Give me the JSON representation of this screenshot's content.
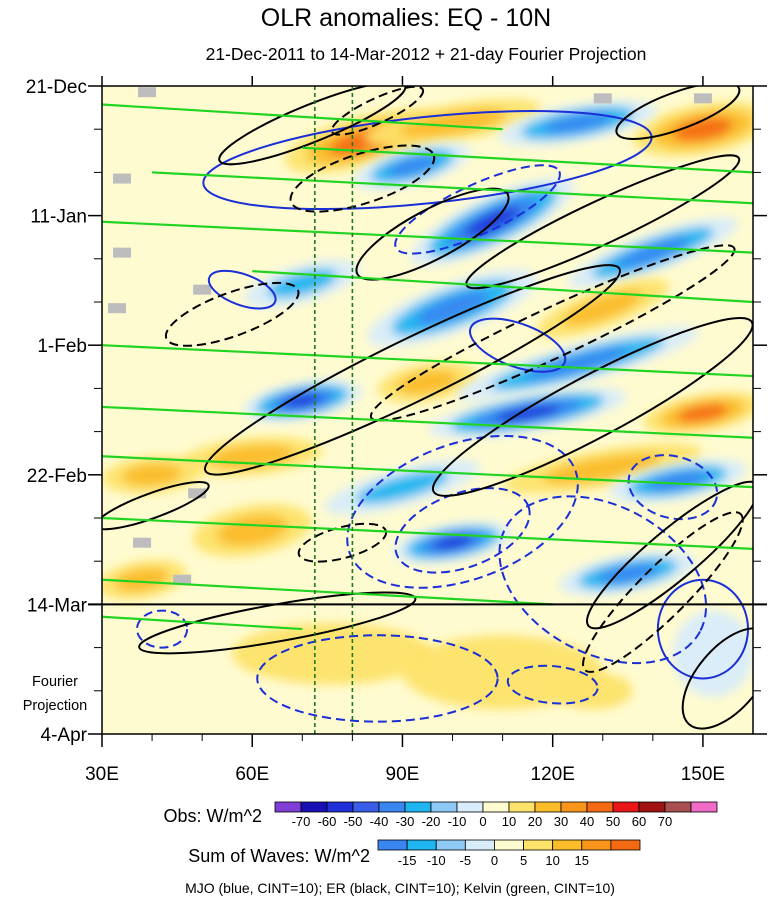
{
  "chart_data": {
    "type": "heatmap",
    "title": "OLR anomalies: EQ - 10N",
    "subtitle": "21-Dec-2011 to 14-Mar-2012 + 21-day Fourier Projection",
    "x_axis": {
      "range_deg_east": [
        30,
        160
      ],
      "ticks": [
        {
          "value": 30,
          "label": "30E"
        },
        {
          "value": 60,
          "label": "60E"
        },
        {
          "value": 90,
          "label": "90E"
        },
        {
          "value": 120,
          "label": "120E"
        },
        {
          "value": 150,
          "label": "150E"
        }
      ]
    },
    "y_axis": {
      "range_days": [
        0,
        105
      ],
      "ticks": [
        {
          "day": 0,
          "label": "21-Dec"
        },
        {
          "day": 21,
          "label": "11-Jan"
        },
        {
          "day": 42,
          "label": "1-Feb"
        },
        {
          "day": 63,
          "label": "22-Feb"
        },
        {
          "day": 84,
          "label": "14-Mar"
        },
        {
          "day": 105,
          "label": "4-Apr"
        }
      ],
      "projection_label": [
        "Fourier",
        "Projection"
      ]
    },
    "projection_start_day": 84,
    "reference_longitudes": [
      72.5,
      80
    ],
    "obs_colorbar": {
      "label": "Obs: W/m^2",
      "ticks": [
        "-70",
        "-60",
        "-50",
        "-40",
        "-30",
        "-20",
        "-10",
        "0",
        "10",
        "20",
        "30",
        "40",
        "50",
        "60",
        "70"
      ],
      "colors": [
        "#7f3fd6",
        "#1a0fb5",
        "#2030d8",
        "#3a5de8",
        "#3a86f0",
        "#1fb5f0",
        "#8ec8f5",
        "#d8ecfa",
        "#fffbd0",
        "#fde36a",
        "#fbbd2a",
        "#f9951a",
        "#f46a12",
        "#e81616",
        "#a01212",
        "#a85050",
        "#f06ac8"
      ]
    },
    "waves_colorbar": {
      "label": "Sum of Waves: W/m^2",
      "ticks": [
        "-15",
        "-10",
        "-5",
        "0",
        "5",
        "10",
        "15"
      ],
      "colors": [
        "#3a86f0",
        "#1fb5f0",
        "#8ec8f5",
        "#d8ecfa",
        "#fffbd0",
        "#fde36a",
        "#fbbd2a",
        "#f9951a",
        "#f46a12"
      ]
    },
    "footer": "MJO (blue, CINT=10); ER (black, CINT=10); Kelvin (green, CINT=10)",
    "contours": [
      {
        "wave": "MJO",
        "color": "#1a2fd6",
        "sign": "negative",
        "cx": 102,
        "cy": 69,
        "rx": 24,
        "ry": 11,
        "rot": -20
      },
      {
        "wave": "MJO",
        "color": "#1a2fd6",
        "sign": "negative",
        "cx": 102,
        "cy": 72,
        "rx": 14,
        "ry": 6,
        "rot": -20
      },
      {
        "wave": "MJO",
        "color": "#1a2fd6",
        "sign": "positive",
        "cx": 95,
        "cy": 12,
        "rx": 45,
        "ry": 7,
        "rot": -6
      },
      {
        "wave": "MJO",
        "color": "#1a2fd6",
        "sign": "negative",
        "cx": 130,
        "cy": 80,
        "rx": 22,
        "ry": 12,
        "rot": 28
      },
      {
        "wave": "MJO",
        "color": "#1a2fd6",
        "sign": "positive",
        "cx": 58,
        "cy": 33,
        "rx": 7,
        "ry": 2.5,
        "rot": 20
      },
      {
        "wave": "MJO",
        "color": "#1a2fd6",
        "sign": "negative",
        "cx": 105,
        "cy": 20,
        "rx": 18,
        "ry": 4,
        "rot": -25
      },
      {
        "wave": "MJO",
        "color": "#1a2fd6",
        "sign": "positive",
        "cx": 113,
        "cy": 42,
        "rx": 10,
        "ry": 3.5,
        "rot": 20
      },
      {
        "wave": "MJO",
        "color": "#1a2fd6",
        "sign": "negative",
        "cx": 85,
        "cy": 96,
        "rx": 24,
        "ry": 7,
        "rot": 0
      },
      {
        "wave": "MJO",
        "color": "#1a2fd6",
        "sign": "negative",
        "cx": 120,
        "cy": 97,
        "rx": 9,
        "ry": 3,
        "rot": 5
      },
      {
        "wave": "MJO",
        "color": "#1a2fd6",
        "sign": "negative",
        "cx": 42,
        "cy": 88,
        "rx": 5,
        "ry": 3,
        "rot": 0
      },
      {
        "wave": "MJO",
        "color": "#1a2fd6",
        "sign": "positive",
        "cx": 150,
        "cy": 88,
        "rx": 9,
        "ry": 8,
        "rot": 0
      },
      {
        "wave": "MJO",
        "color": "#1a2fd6",
        "sign": "negative",
        "cx": 144,
        "cy": 65,
        "rx": 9,
        "ry": 5,
        "rot": 15
      },
      {
        "wave": "ER",
        "color": "#000000",
        "sign": "positive",
        "cx": 96,
        "cy": 24,
        "rx": 17,
        "ry": 4,
        "rot": -28
      },
      {
        "wave": "ER",
        "color": "#000000",
        "sign": "negative",
        "cx": 82,
        "cy": 15,
        "rx": 15,
        "ry": 4,
        "rot": -18
      },
      {
        "wave": "ER",
        "color": "#000000",
        "sign": "negative",
        "cx": 56,
        "cy": 37,
        "rx": 14,
        "ry": 3.5,
        "rot": -20
      },
      {
        "wave": "ER",
        "color": "#000000",
        "sign": "positive",
        "cx": 92,
        "cy": 46,
        "rx": 46,
        "ry": 5,
        "rot": -26
      },
      {
        "wave": "ER",
        "color": "#000000",
        "sign": "positive",
        "cx": 128,
        "cy": 52,
        "rx": 36,
        "ry": 5,
        "rot": -28
      },
      {
        "wave": "ER",
        "color": "#000000",
        "sign": "negative",
        "cx": 120,
        "cy": 40,
        "rx": 40,
        "ry": 4,
        "rot": -25
      },
      {
        "wave": "ER",
        "color": "#000000",
        "sign": "positive",
        "cx": 72,
        "cy": 6,
        "rx": 20,
        "ry": 3,
        "rot": -22
      },
      {
        "wave": "ER",
        "color": "#000000",
        "sign": "negative",
        "cx": 85,
        "cy": 4,
        "rx": 10,
        "ry": 2,
        "rot": -25
      },
      {
        "wave": "ER",
        "color": "#000000",
        "sign": "positive",
        "cx": 130,
        "cy": 22,
        "rx": 30,
        "ry": 3.5,
        "rot": -25
      },
      {
        "wave": "ER",
        "color": "#000000",
        "sign": "negative",
        "cx": 142,
        "cy": 82,
        "rx": 22,
        "ry": 4,
        "rot": -45
      },
      {
        "wave": "ER",
        "color": "#000000",
        "sign": "positive",
        "cx": 144,
        "cy": 76,
        "rx": 22,
        "ry": 4,
        "rot": -40
      },
      {
        "wave": "ER",
        "color": "#000000",
        "sign": "positive",
        "cx": 65,
        "cy": 87,
        "rx": 28,
        "ry": 3,
        "rot": -10
      },
      {
        "wave": "ER",
        "color": "#000000",
        "sign": "positive",
        "cx": 155,
        "cy": 96,
        "rx": 12,
        "ry": 5,
        "rot": -50
      },
      {
        "wave": "ER",
        "color": "#000000",
        "sign": "positive",
        "cx": 40,
        "cy": 68,
        "rx": 12,
        "ry": 2,
        "rot": -20
      },
      {
        "wave": "ER",
        "color": "#000000",
        "sign": "negative",
        "cx": 78,
        "cy": 74,
        "rx": 9,
        "ry": 2.5,
        "rot": -15
      },
      {
        "wave": "ER",
        "color": "#000000",
        "sign": "positive",
        "cx": 145,
        "cy": 4,
        "rx": 13,
        "ry": 3,
        "rot": -20
      }
    ],
    "kelvin_tracks": [
      {
        "x1": 30,
        "y1": 3,
        "x2": 110,
        "y2": 7
      },
      {
        "x1": 70,
        "y1": 10,
        "x2": 160,
        "y2": 14
      },
      {
        "x1": 30,
        "y1": 22,
        "x2": 160,
        "y2": 27
      },
      {
        "x1": 60,
        "y1": 30,
        "x2": 160,
        "y2": 35
      },
      {
        "x1": 30,
        "y1": 42,
        "x2": 160,
        "y2": 47
      },
      {
        "x1": 30,
        "y1": 52,
        "x2": 160,
        "y2": 57
      },
      {
        "x1": 30,
        "y1": 60,
        "x2": 160,
        "y2": 65
      },
      {
        "x1": 30,
        "y1": 70,
        "x2": 160,
        "y2": 75
      },
      {
        "x1": 30,
        "y1": 80,
        "x2": 120,
        "y2": 84
      },
      {
        "x1": 40,
        "y1": 14,
        "x2": 160,
        "y2": 19
      },
      {
        "x1": 30,
        "y1": 86,
        "x2": 70,
        "y2": 88
      }
    ],
    "blobs": [
      {
        "lon": 82,
        "day": 9,
        "lr": 16,
        "dr": 4,
        "rot": -15,
        "value": 45
      },
      {
        "lon": 100,
        "day": 6,
        "lr": 18,
        "dr": 3,
        "rot": -10,
        "value": 30
      },
      {
        "lon": 150,
        "day": 7,
        "lr": 14,
        "dr": 4,
        "rot": -10,
        "value": 50
      },
      {
        "lon": 92,
        "day": 13,
        "lr": 12,
        "dr": 3,
        "rot": -15,
        "value": -40
      },
      {
        "lon": 108,
        "day": 22,
        "lr": 18,
        "dr": 4,
        "rot": -25,
        "value": -55
      },
      {
        "lon": 125,
        "day": 6,
        "lr": 16,
        "dr": 3,
        "rot": -10,
        "value": -45
      },
      {
        "lon": 70,
        "day": 32,
        "lr": 12,
        "dr": 3,
        "rot": -15,
        "value": -30
      },
      {
        "lon": 140,
        "day": 27,
        "lr": 18,
        "dr": 3,
        "rot": -20,
        "value": -50
      },
      {
        "lon": 100,
        "day": 36,
        "lr": 18,
        "dr": 4,
        "rot": -20,
        "value": -50
      },
      {
        "lon": 130,
        "day": 36,
        "lr": 14,
        "dr": 3,
        "rot": -20,
        "value": 35
      },
      {
        "lon": 95,
        "day": 48,
        "lr": 10,
        "dr": 3,
        "rot": -10,
        "value": 30
      },
      {
        "lon": 125,
        "day": 45,
        "lr": 25,
        "dr": 3,
        "rot": -15,
        "value": -40
      },
      {
        "lon": 70,
        "day": 51,
        "lr": 12,
        "dr": 3,
        "rot": -10,
        "value": -55
      },
      {
        "lon": 150,
        "day": 53,
        "lr": 12,
        "dr": 3,
        "rot": -10,
        "value": 40
      },
      {
        "lon": 115,
        "day": 53,
        "lr": 20,
        "dr": 3,
        "rot": -10,
        "value": -60
      },
      {
        "lon": 60,
        "day": 60,
        "lr": 14,
        "dr": 3,
        "rot": -5,
        "value": 25
      },
      {
        "lon": 130,
        "day": 62,
        "lr": 20,
        "dr": 3,
        "rot": -10,
        "value": 30
      },
      {
        "lon": 40,
        "day": 63,
        "lr": 10,
        "dr": 3,
        "rot": -5,
        "value": 30
      },
      {
        "lon": 90,
        "day": 65,
        "lr": 16,
        "dr": 3,
        "rot": -15,
        "value": -35
      },
      {
        "lon": 145,
        "day": 64,
        "lr": 14,
        "dr": 3,
        "rot": -10,
        "value": -45
      },
      {
        "lon": 100,
        "day": 74,
        "lr": 12,
        "dr": 3,
        "rot": -10,
        "value": -55
      },
      {
        "lon": 135,
        "day": 79,
        "lr": 14,
        "dr": 3,
        "rot": -10,
        "value": -50
      },
      {
        "lon": 60,
        "day": 72,
        "lr": 12,
        "dr": 4,
        "rot": -10,
        "value": 30
      },
      {
        "lon": 38,
        "day": 80,
        "lr": 9,
        "dr": 3,
        "rot": -10,
        "value": 35
      },
      {
        "lon": 76,
        "day": 92,
        "lr": 20,
        "dr": 5,
        "rot": 0,
        "value": 15
      },
      {
        "lon": 110,
        "day": 95,
        "lr": 20,
        "dr": 6,
        "rot": 0,
        "value": 10
      },
      {
        "lon": 128,
        "day": 98,
        "lr": 8,
        "dr": 3,
        "rot": 0,
        "value": 15
      },
      {
        "lon": 152,
        "day": 92,
        "lr": 8,
        "dr": 7,
        "rot": 0,
        "value": -5
      }
    ],
    "missing_data": [
      {
        "lon": 39,
        "day": 1
      },
      {
        "lon": 34,
        "day": 27
      },
      {
        "lon": 33,
        "day": 36
      },
      {
        "lon": 50,
        "day": 33
      },
      {
        "lon": 38,
        "day": 74
      },
      {
        "lon": 46,
        "day": 80
      },
      {
        "lon": 150,
        "day": 2
      },
      {
        "lon": 130,
        "day": 2
      },
      {
        "lon": 49,
        "day": 66
      },
      {
        "lon": 34,
        "day": 15
      }
    ]
  }
}
